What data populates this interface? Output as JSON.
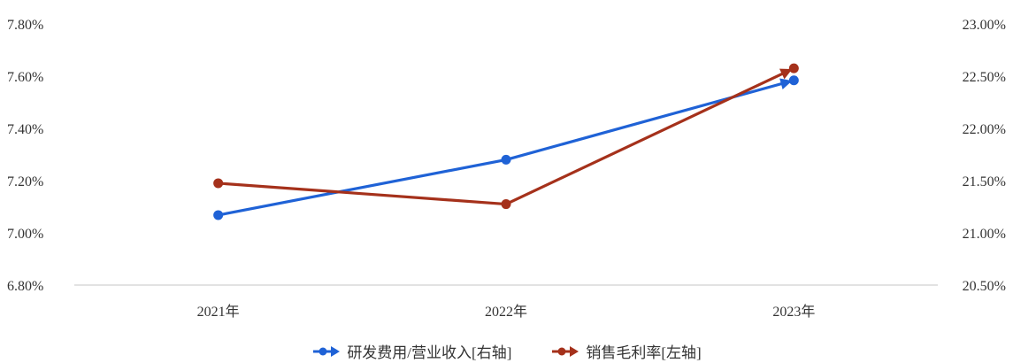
{
  "chart_data": {
    "type": "line",
    "categories": [
      "2021年",
      "2022年",
      "2023年"
    ],
    "left_axis": {
      "ylim": [
        6.8,
        7.8
      ],
      "ticks": [
        "6.80%",
        "7.00%",
        "7.20%",
        "7.40%",
        "7.60%",
        "7.80%"
      ]
    },
    "right_axis": {
      "ylim": [
        20.5,
        23.0
      ],
      "ticks": [
        "20.50%",
        "21.00%",
        "21.50%",
        "22.00%",
        "22.50%",
        "23.00%"
      ]
    },
    "series": [
      {
        "name": "研发费用/营业收入[右轴]",
        "axis": "right",
        "color": "#1f62d6",
        "values": [
          21.17,
          21.7,
          22.46
        ]
      },
      {
        "name": "销售毛利率[左轴]",
        "axis": "left",
        "color": "#a5311b",
        "values": [
          7.19,
          7.11,
          7.63
        ]
      }
    ],
    "grid": false,
    "legend_position": "bottom"
  }
}
